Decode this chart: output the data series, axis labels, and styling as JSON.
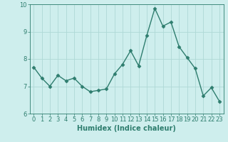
{
  "x": [
    0,
    1,
    2,
    3,
    4,
    5,
    6,
    7,
    8,
    9,
    10,
    11,
    12,
    13,
    14,
    15,
    16,
    17,
    18,
    19,
    20,
    21,
    22,
    23
  ],
  "y": [
    7.7,
    7.3,
    7.0,
    7.4,
    7.2,
    7.3,
    7.0,
    6.8,
    6.85,
    6.9,
    7.45,
    7.8,
    8.3,
    7.75,
    8.85,
    9.85,
    9.2,
    9.35,
    8.45,
    8.05,
    7.65,
    6.65,
    6.95,
    6.45
  ],
  "line_color": "#2e7d6e",
  "marker": "D",
  "markersize": 2.5,
  "linewidth": 1.0,
  "xlabel": "Humidex (Indice chaleur)",
  "xlim": [
    -0.5,
    23.5
  ],
  "ylim": [
    6.0,
    10.0
  ],
  "yticks": [
    6,
    7,
    8,
    9,
    10
  ],
  "xticks": [
    0,
    1,
    2,
    3,
    4,
    5,
    6,
    7,
    8,
    9,
    10,
    11,
    12,
    13,
    14,
    15,
    16,
    17,
    18,
    19,
    20,
    21,
    22,
    23
  ],
  "bg_color": "#ceeeed",
  "grid_color": "#aed8d6",
  "tick_color": "#2e7d6e",
  "label_color": "#2e7d6e",
  "xlabel_fontsize": 7,
  "tick_fontsize": 6
}
